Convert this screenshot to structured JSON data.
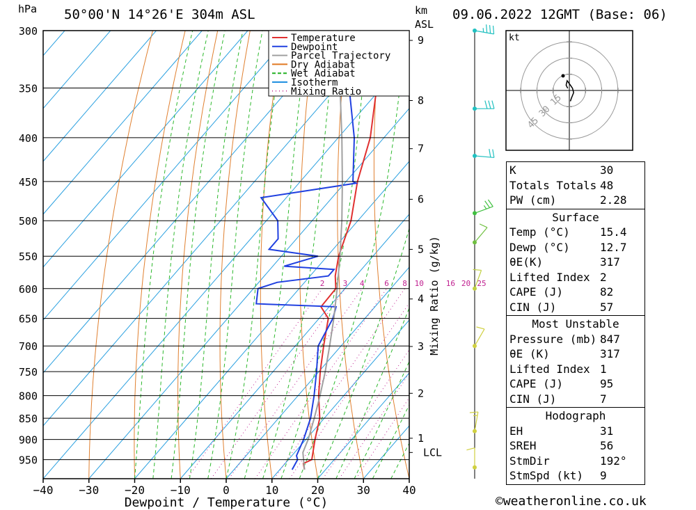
{
  "header": {
    "location": "50°00'N 14°26'E 304m ASL",
    "datetime": "09.06.2022 12GMT (Base: 06)",
    "hpa_unit": "hPa",
    "km_unit": "km",
    "asl_unit": "ASL"
  },
  "footer": {
    "copyright": "©weatheronline.co.uk"
  },
  "legend": [
    {
      "label": "Temperature",
      "color": "#e03030",
      "style": "solid"
    },
    {
      "label": "Dewpoint",
      "color": "#2040e0",
      "style": "solid"
    },
    {
      "label": "Parcel Trajectory",
      "color": "#a0a0a0",
      "style": "solid"
    },
    {
      "label": "Dry Adiabat",
      "color": "#e07820",
      "style": "solid"
    },
    {
      "label": "Wet Adiabat",
      "color": "#20b020",
      "style": "dashed"
    },
    {
      "label": "Isotherm",
      "color": "#2090e0",
      "style": "solid"
    },
    {
      "label": "Mixing Ratio",
      "color": "#c0208a",
      "style": "dotted"
    }
  ],
  "hodograph": {
    "unit": "kt",
    "ring_labels": [
      "15",
      "30",
      "45"
    ],
    "points_kt": [
      [
        -1.5,
        2
      ],
      [
        -3,
        5
      ],
      [
        -2,
        9
      ],
      [
        1,
        5
      ],
      [
        3,
        2
      ],
      [
        4,
        -2
      ],
      [
        2,
        -7
      ],
      [
        1,
        -10
      ]
    ]
  },
  "indices": {
    "top": [
      {
        "label": "K",
        "value": "30"
      },
      {
        "label": "Totals Totals",
        "value": "48"
      },
      {
        "label": "PW (cm)",
        "value": "2.28"
      }
    ],
    "surface": {
      "title": "Surface",
      "rows": [
        {
          "label": "Temp (°C)",
          "value": "15.4"
        },
        {
          "label": "Dewp (°C)",
          "value": "12.7"
        },
        {
          "label": "θE(K)",
          "value": "317"
        },
        {
          "label": "Lifted Index",
          "value": "2"
        },
        {
          "label": "CAPE (J)",
          "value": "82"
        },
        {
          "label": "CIN (J)",
          "value": "57"
        }
      ]
    },
    "most_unstable": {
      "title": "Most Unstable",
      "rows": [
        {
          "label": "Pressure (mb)",
          "value": "847"
        },
        {
          "label": "θE (K)",
          "value": "317"
        },
        {
          "label": "Lifted Index",
          "value": "1"
        },
        {
          "label": "CAPE (J)",
          "value": "95"
        },
        {
          "label": "CIN (J)",
          "value": "7"
        }
      ]
    },
    "hodograph_params": {
      "title": "Hodograph",
      "rows": [
        {
          "label": "EH",
          "value": "31"
        },
        {
          "label": "SREH",
          "value": "56"
        },
        {
          "label": "StmDir",
          "value": "192°"
        },
        {
          "label": "StmSpd (kt)",
          "value": "9"
        }
      ]
    }
  },
  "chart_data": {
    "type": "line",
    "title": "",
    "xlabel": "Dewpoint / Temperature (°C)",
    "ylabel": "hPa",
    "y2label": "Mixing Ratio (g/kg)",
    "xlim": [
      -40,
      40
    ],
    "ylim": [
      300,
      1000
    ],
    "x_ticks": [
      "−40",
      "−30",
      "−20",
      "−10",
      "0",
      "10",
      "20",
      "30",
      "40"
    ],
    "pressure_ticks": [
      300,
      350,
      400,
      450,
      500,
      550,
      600,
      650,
      700,
      750,
      800,
      850,
      900,
      950
    ],
    "km_ticks": [
      {
        "label": "9",
        "p": 308
      },
      {
        "label": "8",
        "p": 362
      },
      {
        "label": "7",
        "p": 412
      },
      {
        "label": "6",
        "p": 472
      },
      {
        "label": "5",
        "p": 540
      },
      {
        "label": "4",
        "p": 617
      },
      {
        "label": "3",
        "p": 701
      },
      {
        "label": "2",
        "p": 795
      },
      {
        "label": "1",
        "p": 897
      },
      {
        "label": "LCL",
        "p": 932
      }
    ],
    "mixing_ratio_labels": [
      "2",
      "3",
      "4",
      "6",
      "8",
      "10",
      "16",
      "20",
      "25"
    ],
    "mixing_ratio_values": [
      2,
      3,
      4,
      6,
      8,
      10,
      16,
      20,
      25
    ],
    "series": [
      {
        "name": "Temperature",
        "color": "#e03030",
        "points": [
          [
            976,
            15.4
          ],
          [
            960,
            14.0
          ],
          [
            950,
            15.1
          ],
          [
            900,
            12.0
          ],
          [
            850,
            9.0
          ],
          [
            800,
            4.5
          ],
          [
            750,
            0.3
          ],
          [
            700,
            -3.8
          ],
          [
            650,
            -8.0
          ],
          [
            630,
            -11.8
          ],
          [
            600,
            -12.0
          ],
          [
            580,
            -14.5
          ],
          [
            550,
            -17.5
          ],
          [
            500,
            -21.5
          ],
          [
            450,
            -27.5
          ],
          [
            400,
            -33.0
          ],
          [
            350,
            -41.0
          ],
          [
            300,
            -49.5
          ]
        ]
      },
      {
        "name": "Dewpoint",
        "color": "#2040e0",
        "points": [
          [
            976,
            12.7
          ],
          [
            950,
            12.0
          ],
          [
            940,
            11.0
          ],
          [
            900,
            9.5
          ],
          [
            850,
            7.0
          ],
          [
            800,
            3.5
          ],
          [
            750,
            -0.5
          ],
          [
            700,
            -5.0
          ],
          [
            650,
            -7.0
          ],
          [
            630,
            -8.5
          ],
          [
            625,
            -26.5
          ],
          [
            600,
            -29.0
          ],
          [
            590,
            -26.0
          ],
          [
            580,
            -16.0
          ],
          [
            570,
            -16.0
          ],
          [
            565,
            -27.5
          ],
          [
            550,
            -22.0
          ],
          [
            540,
            -34.0
          ],
          [
            525,
            -34.0
          ],
          [
            500,
            -37.5
          ],
          [
            470,
            -45.5
          ],
          [
            452,
            -27.5
          ],
          [
            450,
            -28.5
          ],
          [
            400,
            -36.5
          ],
          [
            350,
            -47.0
          ],
          [
            320,
            -56.0
          ],
          [
            300,
            -58.5
          ]
        ]
      },
      {
        "name": "Parcel Trajectory",
        "color": "#a0a0a0",
        "points": [
          [
            976,
            15.4
          ],
          [
            932,
            11.8
          ],
          [
            900,
            10.5
          ],
          [
            850,
            7.8
          ],
          [
            800,
            4.8
          ],
          [
            750,
            1.4
          ],
          [
            700,
            -2.5
          ],
          [
            650,
            -6.8
          ],
          [
            600,
            -11.7
          ],
          [
            550,
            -17.2
          ],
          [
            500,
            -23.5
          ],
          [
            450,
            -30.8
          ],
          [
            400,
            -39.2
          ],
          [
            350,
            -49.0
          ],
          [
            300,
            -60.0
          ]
        ]
      }
    ],
    "wind_barbs": [
      {
        "p": 300,
        "speed_kt": 25,
        "dir": 280,
        "color": "#20c0c0"
      },
      {
        "p": 370,
        "speed_kt": 30,
        "dir": 270,
        "color": "#20c0c0"
      },
      {
        "p": 420,
        "speed_kt": 20,
        "dir": 275,
        "color": "#20c0c0"
      },
      {
        "p": 490,
        "speed_kt": 15,
        "dir": 250,
        "color": "#40c040"
      },
      {
        "p": 530,
        "speed_kt": 10,
        "dir": 220,
        "color": "#70c040"
      },
      {
        "p": 600,
        "speed_kt": 10,
        "dir": 200,
        "color": "#c0d040"
      },
      {
        "p": 700,
        "speed_kt": 10,
        "dir": 210,
        "color": "#d0d040"
      },
      {
        "p": 880,
        "speed_kt": 5,
        "dir": 190,
        "color": "#d0d040"
      },
      {
        "p": 970,
        "speed_kt": 10,
        "dir": 180,
        "color": "#d0d040"
      }
    ]
  }
}
